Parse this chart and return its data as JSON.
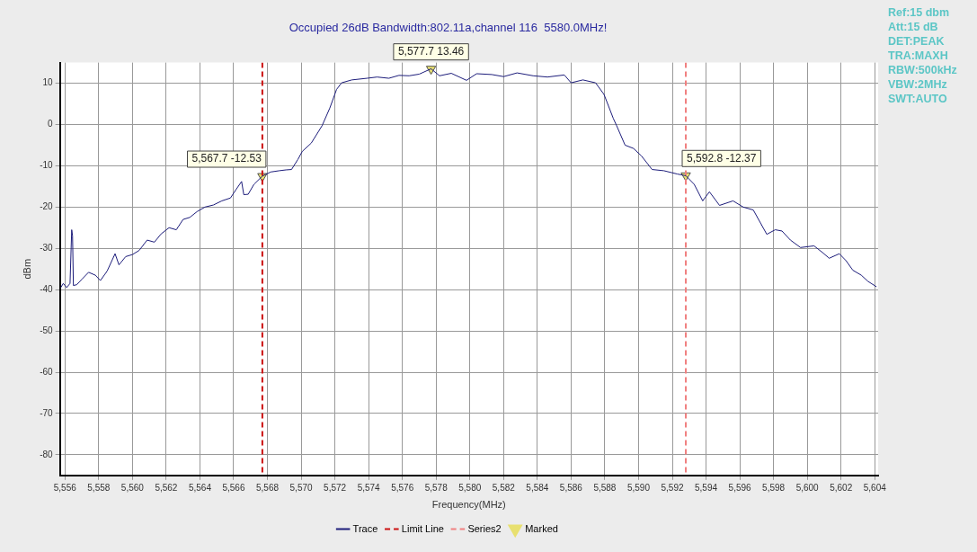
{
  "chart_data": {
    "type": "line",
    "title": "Occupied 26dB Bandwidth:802.11a,channel 116  5580.0MHz!",
    "xlabel": "Frequency(MHz)",
    "ylabel": "dBm",
    "xlim": [
      5555.7,
      5604.2
    ],
    "ylim": [
      -85,
      15
    ],
    "xticks": [
      {
        "value": 5556,
        "label": "5,556"
      },
      {
        "value": 5558,
        "label": "5,558"
      },
      {
        "value": 5560,
        "label": "5,560"
      },
      {
        "value": 5562,
        "label": "5,562"
      },
      {
        "value": 5564,
        "label": "5,564"
      },
      {
        "value": 5566,
        "label": "5,566"
      },
      {
        "value": 5568,
        "label": "5,568"
      },
      {
        "value": 5570,
        "label": "5,570"
      },
      {
        "value": 5572,
        "label": "5,572"
      },
      {
        "value": 5574,
        "label": "5,574"
      },
      {
        "value": 5576,
        "label": "5,576"
      },
      {
        "value": 5578,
        "label": "5,578"
      },
      {
        "value": 5580,
        "label": "5,580"
      },
      {
        "value": 5582,
        "label": "5,582"
      },
      {
        "value": 5584,
        "label": "5,584"
      },
      {
        "value": 5586,
        "label": "5,586"
      },
      {
        "value": 5588,
        "label": "5,588"
      },
      {
        "value": 5590,
        "label": "5,590"
      },
      {
        "value": 5592,
        "label": "5,592"
      },
      {
        "value": 5594,
        "label": "5,594"
      },
      {
        "value": 5596,
        "label": "5,596"
      },
      {
        "value": 5598,
        "label": "5,598"
      },
      {
        "value": 5600,
        "label": "5,600"
      },
      {
        "value": 5602,
        "label": "5,602"
      },
      {
        "value": 5604,
        "label": "5,604"
      }
    ],
    "yticks": [
      -80,
      -70,
      -60,
      -50,
      -40,
      -30,
      -20,
      -10,
      0,
      10
    ],
    "grid": true,
    "legend": "bottom",
    "series": [
      {
        "name": "Trace",
        "color": "#1c1c7a",
        "line_style": "solid",
        "marker": "none",
        "x": [
          5555.75,
          5555.9,
          5556.1,
          5556.3,
          5556.4,
          5556.45,
          5556.5,
          5556.7,
          5557.0,
          5557.4,
          5557.8,
          5558.1,
          5558.5,
          5558.97,
          5559.2,
          5559.6,
          5560.0,
          5560.4,
          5560.87,
          5561.3,
          5561.7,
          5562.17,
          5562.6,
          5563.0,
          5563.4,
          5563.83,
          5564.3,
          5564.8,
          5565.3,
          5565.81,
          5566.1,
          5566.47,
          5566.6,
          5566.86,
          5567.2,
          5567.7,
          5568.2,
          5568.7,
          5569.1,
          5569.43,
          5569.8,
          5570.07,
          5570.6,
          5571.24,
          5571.7,
          5572.1,
          5572.4,
          5573.0,
          5573.9,
          5574.5,
          5575.2,
          5575.8,
          5576.4,
          5577.0,
          5577.7,
          5578.2,
          5578.9,
          5579.8,
          5580.4,
          5581.3,
          5582.0,
          5582.8,
          5583.75,
          5584.6,
          5585.6,
          5586.0,
          5586.7,
          5587.45,
          5587.95,
          5588.5,
          5588.7,
          5589.2,
          5589.7,
          5590.17,
          5590.8,
          5591.5,
          5592.3,
          5592.8,
          5593.3,
          5593.8,
          5594.2,
          5594.8,
          5595.6,
          5596.2,
          5596.8,
          5597.6,
          5598.1,
          5598.5,
          5599.0,
          5599.6,
          5600.4,
          5600.9,
          5601.3,
          5601.9,
          5602.3,
          5602.7,
          5603.2,
          5603.6,
          5604.1
        ],
        "values": [
          -39.5,
          -38.5,
          -39.5,
          -38.5,
          -25.5,
          -27,
          -39,
          -38.8,
          -37.5,
          -35.8,
          -36.5,
          -37.8,
          -35.5,
          -31.3,
          -34,
          -32,
          -31.5,
          -30.5,
          -28,
          -28.5,
          -26.5,
          -25,
          -25.5,
          -23,
          -22.5,
          -21.1,
          -20,
          -19.5,
          -18.5,
          -17.8,
          -16,
          -13.8,
          -17,
          -16.9,
          -14.5,
          -12.5,
          -11.5,
          -11.2,
          -11,
          -10.9,
          -8.5,
          -6.5,
          -4.5,
          -0.3,
          4,
          8.5,
          10.1,
          10.8,
          11.2,
          11.5,
          11.2,
          11.9,
          11.8,
          12.2,
          13.5,
          11.8,
          12.4,
          10.7,
          12.3,
          12.1,
          11.6,
          12.5,
          11.8,
          11.5,
          12,
          10.1,
          10.8,
          10.1,
          7.3,
          1.5,
          -0.3,
          -5,
          -5.8,
          -7.6,
          -10.9,
          -11.2,
          -12,
          -12.4,
          -14.5,
          -18.5,
          -16.3,
          -19.6,
          -18.5,
          -20,
          -20.7,
          -26.6,
          -25.5,
          -25.8,
          -28,
          -29.8,
          -29.4,
          -31,
          -32.4,
          -31.3,
          -33,
          -35.3,
          -36.5,
          -38,
          -39.3
        ]
      },
      {
        "name": "Limit Line",
        "type": "line",
        "color": "#cc1111",
        "line_style": "dashed",
        "marker": "none",
        "x": [
          5567.7,
          5567.7
        ],
        "values": [
          15,
          -85
        ]
      },
      {
        "name": "Series2",
        "type": "line",
        "color": "#f08080",
        "line_style": "dashed",
        "marker": "none",
        "x": [
          5592.8,
          5592.8
        ],
        "values": [
          15,
          -85
        ]
      },
      {
        "name": "Marked",
        "type": "scatter",
        "color": "#e8e070",
        "marker": "triangle",
        "x": [
          5567.7,
          5577.7,
          5592.8
        ],
        "values": [
          -12.53,
          13.46,
          -12.37
        ],
        "value_labels": [
          "5,567.7 -12.53",
          "5,577.7 13.46",
          "5,592.8 -12.37"
        ]
      }
    ],
    "annotations": [
      "Ref:15 dbm",
      "Att:15 dB",
      "DET:PEAK",
      "TRA:MAXH",
      "RBW:500kHz",
      "VBW:2MHz",
      "SWT:AUTO"
    ]
  }
}
